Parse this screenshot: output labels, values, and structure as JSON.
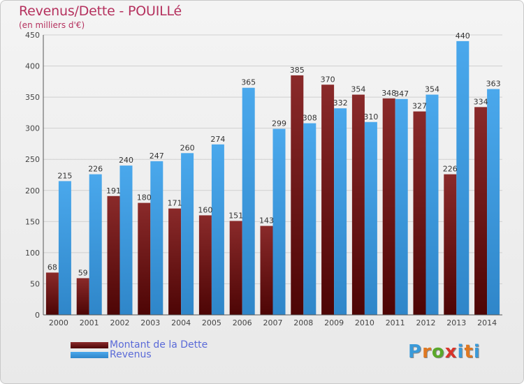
{
  "header": {
    "title": "Revenus/Dette - POUILLé",
    "subtitle": "(en milliers d'€)"
  },
  "legend": {
    "debt_label": "Montant de la Dette",
    "revenue_label": "Revenus"
  },
  "logo": {
    "text": "Proxiti"
  },
  "colors": {
    "debt": "#7a1717",
    "revenue": "#3c9ce4",
    "title": "#b5315e",
    "legend_text": "#5a6ad8"
  },
  "chart_data": {
    "type": "bar",
    "title": "Revenus/Dette - POUILLé",
    "subtitle": "(en milliers d'€)",
    "categories": [
      "2000",
      "2001",
      "2002",
      "2003",
      "2004",
      "2005",
      "2006",
      "2007",
      "2008",
      "2009",
      "2010",
      "2011",
      "2012",
      "2013",
      "2014"
    ],
    "series": [
      {
        "name": "Montant de la Dette",
        "values": [
          68,
          59,
          191,
          180,
          171,
          160,
          151,
          143,
          385,
          370,
          354,
          348,
          327,
          226,
          334
        ]
      },
      {
        "name": "Revenus",
        "values": [
          215,
          226,
          240,
          247,
          260,
          274,
          365,
          299,
          308,
          332,
          310,
          347,
          354,
          440,
          363
        ]
      }
    ],
    "ylim": [
      0,
      450
    ],
    "yticks": [
      0,
      50,
      100,
      150,
      200,
      250,
      300,
      350,
      400,
      450
    ],
    "grid": true,
    "legend_position": "bottom-left"
  }
}
